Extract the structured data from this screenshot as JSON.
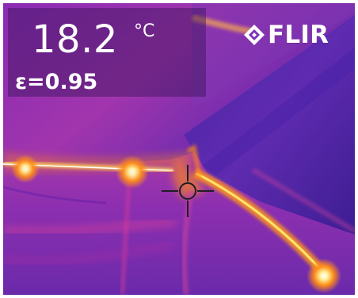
{
  "thermal_readout": {
    "temperature_value": "18.2",
    "temperature_unit": "°C",
    "emissivity": "ε=0.95"
  },
  "brand": {
    "logo_icon": "flir-diamond-logo-icon",
    "logo_text": "FLIR"
  },
  "scene": {
    "description_icon": "thermal-infrared-image",
    "crosshair_icon": "spot-meter-crosshair-icon",
    "palette": {
      "dark_purple": "#3f1b8d",
      "purple": "#7c32b5",
      "magenta": "#c63aa1",
      "orange": "#ff8b16",
      "yellow": "#fff29a",
      "white": "#ffffff"
    }
  }
}
